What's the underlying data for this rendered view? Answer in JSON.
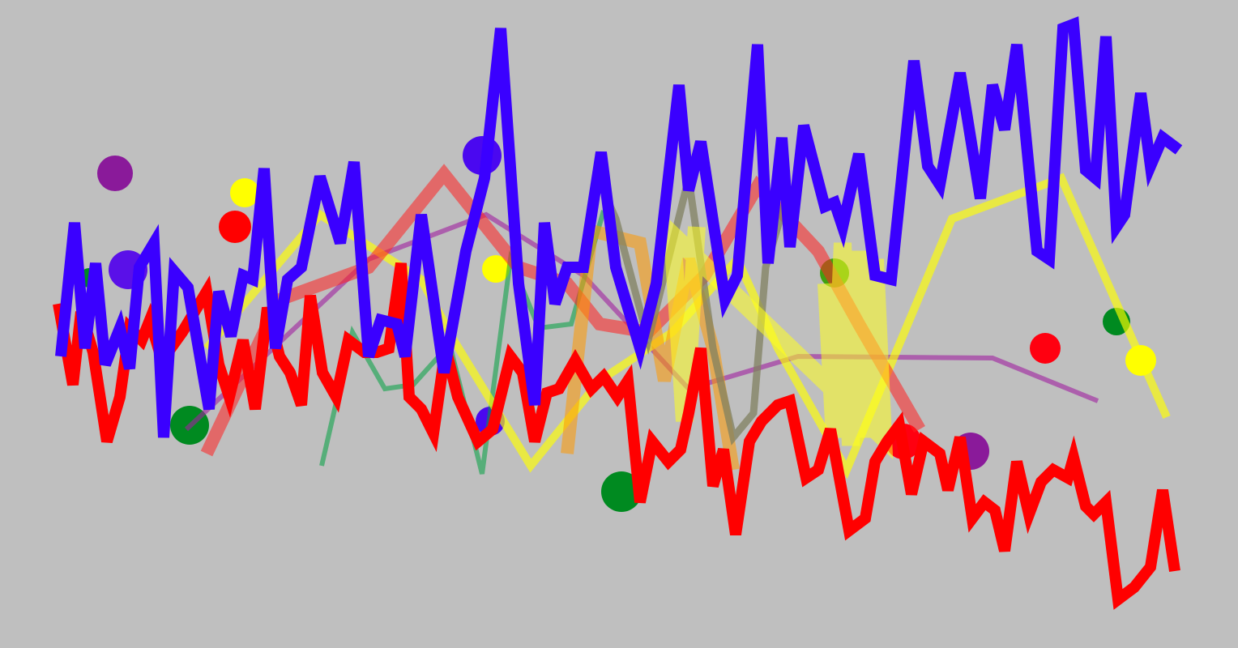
{
  "background_color": "#bfbfbf",
  "strokes": [
    {
      "name": "purple-thin-line",
      "color": "#a020a0",
      "opacity": 0.6
    },
    {
      "name": "green-thin-line",
      "color": "#00a040",
      "opacity": 0.55
    },
    {
      "name": "yellow-line",
      "color": "#ffff00",
      "opacity": 0.65
    },
    {
      "name": "red-translucent-line",
      "color": "#ff2020",
      "opacity": 0.55
    },
    {
      "name": "orange-translucent-line",
      "color": "#ff9900",
      "opacity": 0.55
    },
    {
      "name": "gray-line",
      "color": "#808060",
      "opacity": 0.75
    },
    {
      "name": "yellow-zigzag-band",
      "color": "#ffff20",
      "opacity": 0.55
    },
    {
      "name": "red-line",
      "color": "#ff0000",
      "opacity": 1
    },
    {
      "name": "blue-line",
      "color": "#3a00ff",
      "opacity": 1
    }
  ],
  "dots": [
    {
      "color": "#8a1a9a"
    },
    {
      "color": "#5a10e8"
    },
    {
      "color": "#ffff00"
    },
    {
      "color": "#ff0000"
    },
    {
      "color": "#ffff00"
    },
    {
      "color": "#4a08f0"
    },
    {
      "color": "#008a20"
    },
    {
      "color": "#008a20"
    },
    {
      "color": "#40a010"
    },
    {
      "color": "#ff0010"
    },
    {
      "color": "#008a20"
    },
    {
      "color": "#ffff00"
    },
    {
      "color": "#8a1a9a"
    },
    {
      "color": "#ff0010"
    },
    {
      "color": "#4a08f0"
    },
    {
      "color": "#008a20"
    }
  ]
}
